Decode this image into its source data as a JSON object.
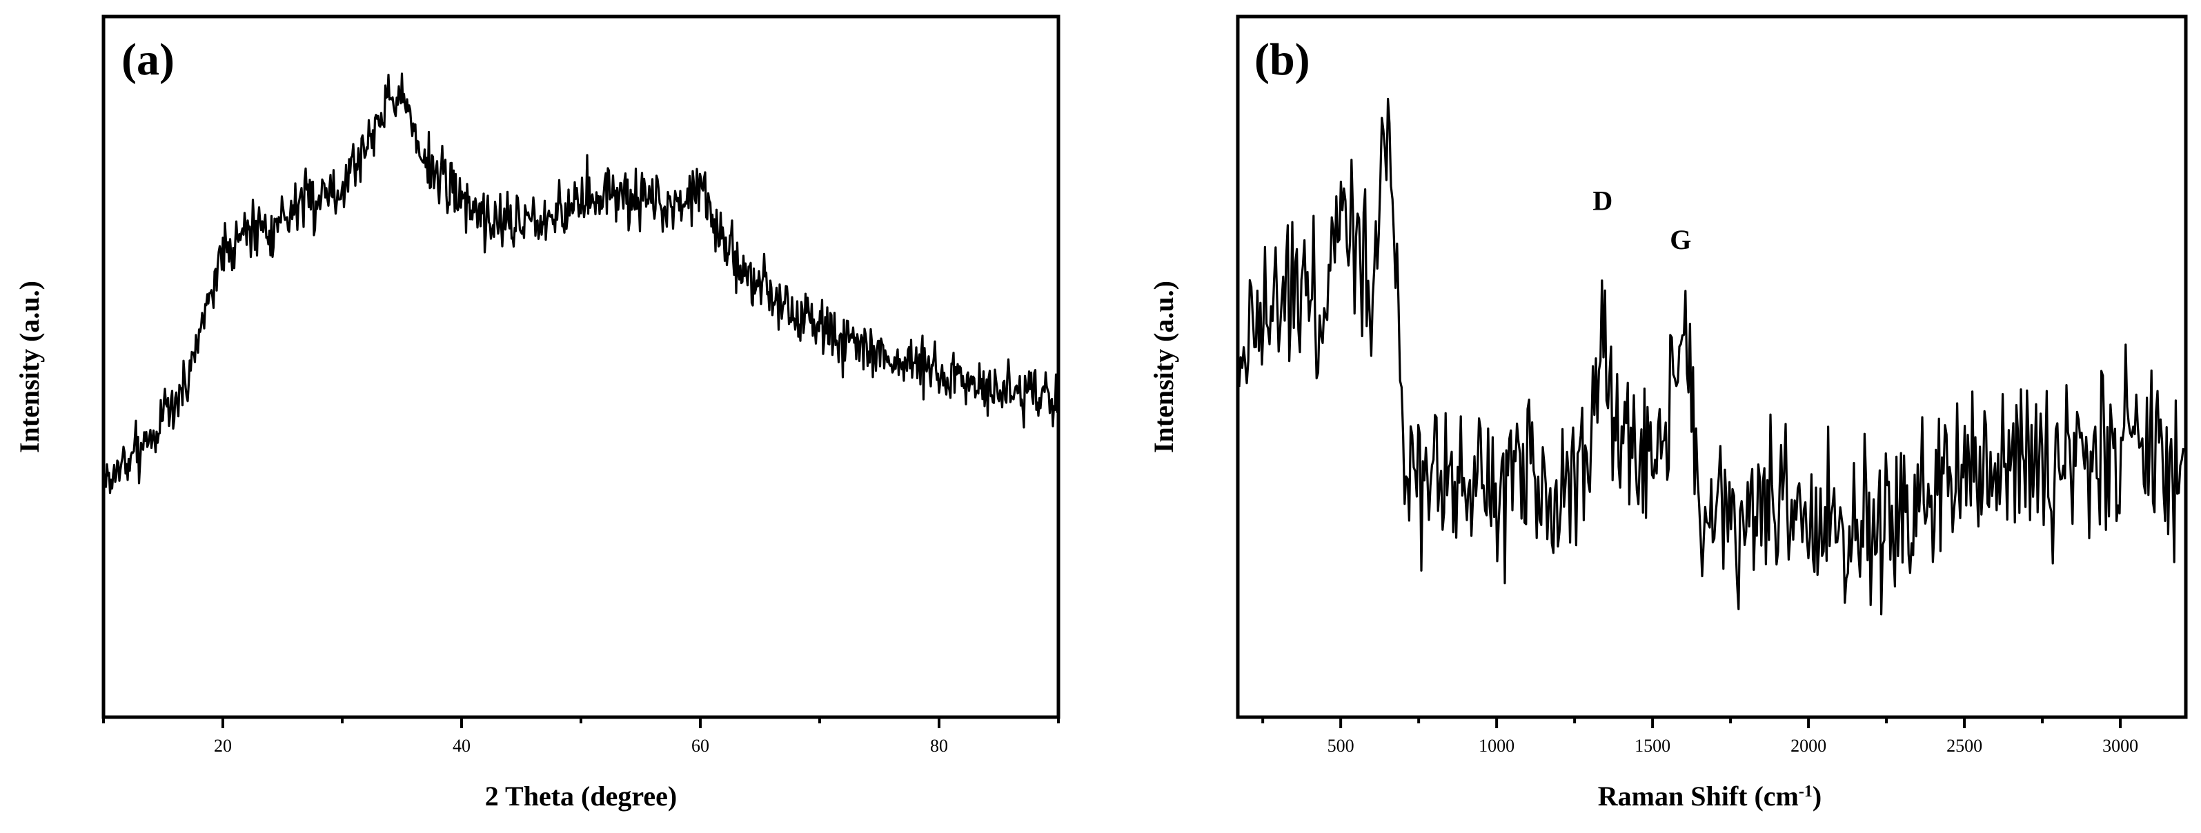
{
  "chart_data": [
    {
      "type": "line",
      "panel_label": "(a)",
      "xlabel": "2 Theta (degree)",
      "ylabel": "Intensity (a.u.)",
      "xlim": [
        10,
        90
      ],
      "ylim": [
        0,
        100
      ],
      "xticks": [
        20,
        40,
        60,
        80
      ],
      "yticks_shown": false,
      "noise_amplitude": 2.2,
      "grid": false,
      "legend": "none",
      "series": [
        {
          "x": [
            10,
            12,
            14,
            16,
            17,
            18,
            19,
            20,
            22,
            24,
            26,
            28,
            30,
            31,
            32,
            33,
            34,
            35,
            36,
            37,
            38,
            40,
            42,
            44,
            46,
            48,
            50,
            52,
            54,
            56,
            58,
            59,
            60,
            61,
            62,
            64,
            66,
            68,
            70,
            72,
            74,
            76,
            78,
            80,
            82,
            84,
            86,
            88,
            90
          ],
          "values": [
            32,
            35,
            39,
            44,
            48,
            55,
            62,
            67,
            71,
            72,
            74,
            76,
            78,
            81,
            84,
            88,
            92,
            91,
            86,
            82,
            79,
            76,
            73,
            72,
            73,
            74,
            75,
            76,
            76,
            75,
            75,
            77,
            79,
            73,
            68,
            64,
            61,
            58,
            56,
            54,
            52,
            51,
            50,
            49,
            48,
            47,
            46,
            45,
            44
          ]
        }
      ]
    },
    {
      "type": "line",
      "panel_label": "(b)",
      "xlabel": "Raman Shift (cm",
      "xlabel_sup": "-1",
      "xlabel_tail": ")",
      "ylabel": "Intensity (a.u.)",
      "xlim": [
        170,
        3210
      ],
      "ylim": [
        0,
        100
      ],
      "xticks": [
        500,
        1000,
        1500,
        2000,
        2500,
        3000
      ],
      "yticks_shown": false,
      "noise_amplitude": 6.5,
      "grid": false,
      "legend": "none",
      "annotations": [
        {
          "text": "D",
          "x": 1340,
          "y": 74
        },
        {
          "text": "G",
          "x": 1590,
          "y": 68
        }
      ],
      "series": [
        {
          "x": [
            170,
            250,
            300,
            350,
            400,
            430,
            470,
            500,
            530,
            560,
            600,
            640,
            660,
            680,
            700,
            720,
            800,
            900,
            1000,
            1100,
            1150,
            1200,
            1250,
            1300,
            1320,
            1340,
            1360,
            1380,
            1420,
            1480,
            1530,
            1560,
            1590,
            1620,
            1640,
            1660,
            1700,
            1800,
            1900,
            2000,
            2100,
            2200,
            2300,
            2400,
            2500,
            2600,
            2700,
            2800,
            2900,
            3000,
            3100,
            3210
          ],
          "values": [
            52,
            56,
            60,
            63,
            60,
            52,
            68,
            74,
            76,
            70,
            58,
            84,
            86,
            68,
            45,
            34,
            32,
            31,
            32,
            33,
            30,
            28,
            31,
            36,
            48,
            55,
            47,
            38,
            35,
            33,
            35,
            48,
            53,
            47,
            32,
            28,
            26,
            25,
            26,
            27,
            26,
            27,
            28,
            30,
            32,
            33,
            33,
            35,
            36,
            37,
            36,
            35
          ]
        }
      ]
    }
  ]
}
